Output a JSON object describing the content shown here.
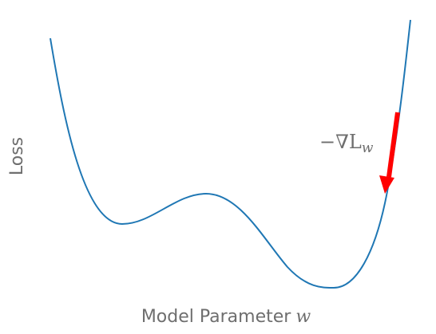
{
  "y_label": "Loss",
  "x_label": {
    "text": "Model Parameter",
    "variable": "w"
  },
  "annotation": {
    "text": "−∇L",
    "subscript": "w"
  }
}
